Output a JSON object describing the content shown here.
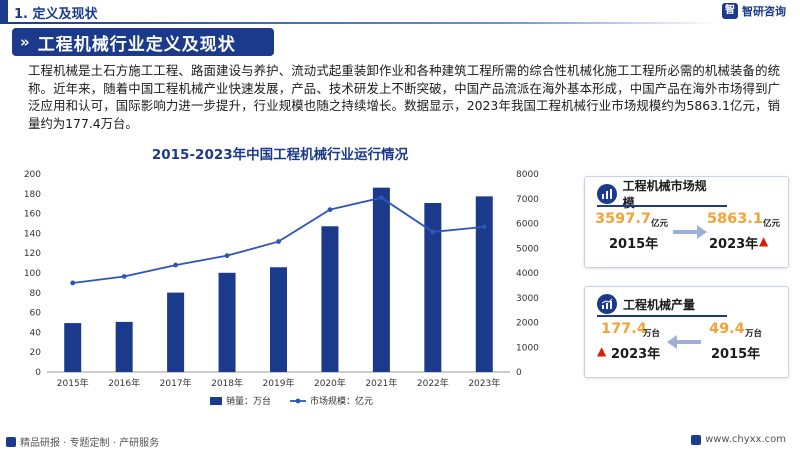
{
  "header": {
    "section_title": "1. 定义及现状",
    "logo_text": "智研咨询",
    "logo_mark": "智"
  },
  "banner": {
    "title": "工程机械行业定义及现状",
    "chevron": "»"
  },
  "intro_text": "工程机械是土石方施工工程、路面建设与养护、流动式起重装卸作业和各种建筑工程所需的综合性机械化施工工程所必需的机械装备的统称。近年来，随着中国工程机械产业快速发展，产品、技术研发上不断突破，中国产品流派在海外基本形成，中国产品在海外市场得到广泛应用和认可，国际影响力进一步提升，行业规模也随之持续增长。数据显示，2023年我国工程机械行业市场规模约为5863.1亿元，销量约为177.4万台。",
  "chart_data": {
    "type": "bar",
    "title": "2015-2023年中国工程机械行业运行情况",
    "categories": [
      "2015年",
      "2016年",
      "2017年",
      "2018年",
      "2019年",
      "2020年",
      "2021年",
      "2022年",
      "2023年"
    ],
    "series": [
      {
        "name": "销量：万台",
        "type": "bar",
        "axis": "left",
        "values": [
          49.4,
          50.6,
          80.2,
          100.2,
          105.8,
          147.2,
          186.2,
          170.7,
          177.4
        ]
      },
      {
        "name": "市场规模：亿元",
        "type": "line",
        "axis": "right",
        "values": [
          3597.7,
          3860,
          4320,
          4700,
          5270,
          6560,
          7040,
          5660,
          5863.1
        ]
      }
    ],
    "y_left": {
      "ticks": [
        0,
        20,
        40,
        60,
        80,
        100,
        120,
        140,
        160,
        180,
        200
      ],
      "ylim": [
        0,
        200
      ]
    },
    "y_right": {
      "ticks": [
        0,
        1000,
        2000,
        3000,
        4000,
        5000,
        6000,
        7000,
        8000
      ],
      "ylim": [
        0,
        8000
      ]
    },
    "legend_position": "bottom",
    "colors": {
      "bar": "#1b3a8c",
      "line": "#2f55b8"
    }
  },
  "market_card": {
    "title": "工程机械市场规模",
    "from_value": "3597.7",
    "from_unit": "亿元",
    "from_year": "2015年",
    "to_value": "5863.1",
    "to_unit": "亿元",
    "to_year": "2023年",
    "trend_symbol": "▲"
  },
  "output_card": {
    "title": "工程机械产量",
    "new_value": "177.4",
    "new_unit": "万台",
    "new_year": "2023年",
    "old_value": "49.4",
    "old_unit": "万台",
    "old_year": "2015年",
    "trend_symbol": "▲"
  },
  "footer": {
    "left_text": "精品研报 · 专题定制 · 产研服务",
    "right_text": "www.chyxx.com"
  },
  "colors": {
    "primary": "#1b3a8c",
    "accent_value": "#f2a33a",
    "up": "#d81e06"
  }
}
